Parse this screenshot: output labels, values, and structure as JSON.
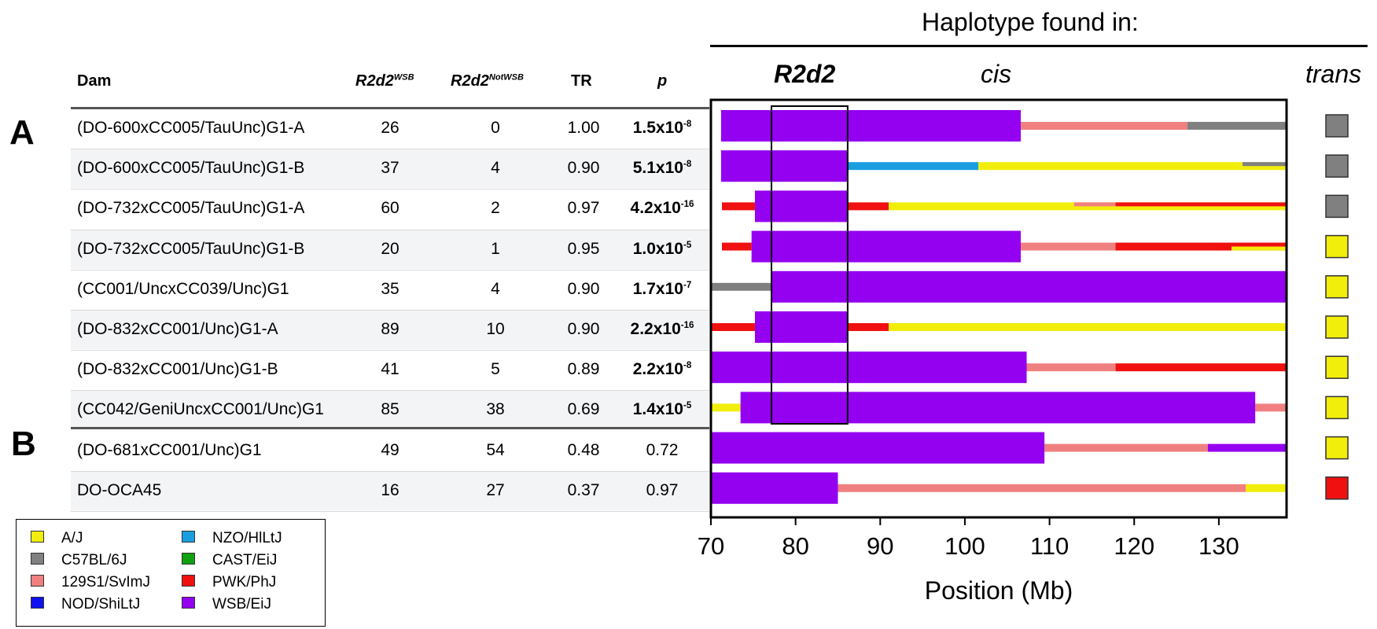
{
  "header": {
    "haplotype_title": "Haplotype found in:",
    "col_dam": "Dam",
    "col_wsb_main": "R2d2",
    "col_wsb_sup": "WSB",
    "col_notwsb_main": "R2d2",
    "col_notwsb_sup": "NotWSB",
    "col_tr": "TR",
    "col_p": "p",
    "r2d2_label": "R2d2",
    "cis_label": "cis",
    "trans_label": "trans"
  },
  "panels": {
    "a": "A",
    "b": "B"
  },
  "rows": [
    {
      "dam": "(DO-600xCC005/TauUnc)G1-A",
      "wsb": "26",
      "notwsb": "0",
      "tr": "1.00",
      "p_base": "1.5x10",
      "p_exp": "-8",
      "p_bold": true
    },
    {
      "dam": "(DO-600xCC005/TauUnc)G1-B",
      "wsb": "37",
      "notwsb": "4",
      "tr": "0.90",
      "p_base": "5.1x10",
      "p_exp": "-8",
      "p_bold": true
    },
    {
      "dam": "(DO-732xCC005/TauUnc)G1-A",
      "wsb": "60",
      "notwsb": "2",
      "tr": "0.97",
      "p_base": "4.2x10",
      "p_exp": "-16",
      "p_bold": true
    },
    {
      "dam": "(DO-732xCC005/TauUnc)G1-B",
      "wsb": "20",
      "notwsb": "1",
      "tr": "0.95",
      "p_base": "1.0x10",
      "p_exp": "-5",
      "p_bold": true
    },
    {
      "dam": "(CC001/UncxCC039/Unc)G1",
      "wsb": "35",
      "notwsb": "4",
      "tr": "0.90",
      "p_base": "1.7x10",
      "p_exp": "-7",
      "p_bold": true
    },
    {
      "dam": "(DO-832xCC001/Unc)G1-A",
      "wsb": "89",
      "notwsb": "10",
      "tr": "0.90",
      "p_base": "2.2x10",
      "p_exp": "-16",
      "p_bold": true
    },
    {
      "dam": "(DO-832xCC001/Unc)G1-B",
      "wsb": "41",
      "notwsb": "5",
      "tr": "0.89",
      "p_base": "2.2x10",
      "p_exp": "-8",
      "p_bold": true
    },
    {
      "dam": "(CC042/GeniUncxCC001/Unc)G1",
      "wsb": "85",
      "notwsb": "38",
      "tr": "0.69",
      "p_base": "1.4x10",
      "p_exp": "-5",
      "p_bold": true
    },
    {
      "dam": "(DO-681xCC001/Unc)G1",
      "wsb": "49",
      "notwsb": "54",
      "tr": "0.48",
      "p_base": "0.72",
      "p_exp": "",
      "p_bold": false
    },
    {
      "dam": "DO-OCA45",
      "wsb": "16",
      "notwsb": "27",
      "tr": "0.37",
      "p_base": "0.97",
      "p_exp": "",
      "p_bold": false
    }
  ],
  "legend": [
    {
      "label": "A/J",
      "color": "#f2ee0b"
    },
    {
      "label": "C57BL/6J",
      "color": "#808080"
    },
    {
      "label": "129S1/SvImJ",
      "color": "#f08080"
    },
    {
      "label": "NOD/ShiLtJ",
      "color": "#1010f0"
    },
    {
      "label": "NZO/HlLtJ",
      "color": "#1a9ee0"
    },
    {
      "label": "CAST/EiJ",
      "color": "#10a010"
    },
    {
      "label": "PWK/PhJ",
      "color": "#f01010"
    },
    {
      "label": "WSB/EiJ",
      "color": "#9400f0"
    }
  ],
  "chart_data": {
    "type": "haplotype-bars",
    "xlabel": "Position (Mb)",
    "xlim": [
      70,
      138
    ],
    "ticks": [
      70,
      80,
      90,
      100,
      110,
      120,
      130
    ],
    "r2d2_region": [
      77.2,
      86.2
    ],
    "strain_colors": {
      "A/J": "#f2ee0b",
      "C57BL/6J": "#808080",
      "129S1/SvImJ": "#f08080",
      "NOD/ShiLtJ": "#1010f0",
      "NZO/HlLtJ": "#1a9ee0",
      "CAST/EiJ": "#10a010",
      "PWK/PhJ": "#f01010",
      "WSB/EiJ": "#9400f0"
    },
    "rows": [
      {
        "cis_thick": [
          [
            71.2,
            106.6,
            "WSB/EiJ"
          ]
        ],
        "cis_thin": [
          [
            106.6,
            126.3,
            "129S1/SvImJ",
            "full"
          ],
          [
            126.3,
            138,
            "C57BL/6J",
            "full"
          ]
        ],
        "trans": "C57BL/6J"
      },
      {
        "cis_thick": [
          [
            71.2,
            86.2,
            "WSB/EiJ"
          ]
        ],
        "cis_thin": [
          [
            86.2,
            101.6,
            "NZO/HlLtJ",
            "full"
          ],
          [
            101.6,
            138,
            "A/J",
            "full"
          ],
          [
            132.8,
            138,
            "C57BL/6J",
            "top"
          ]
        ],
        "trans": "C57BL/6J"
      },
      {
        "cis_thick": [
          [
            75.2,
            86.2,
            "WSB/EiJ"
          ]
        ],
        "cis_thin": [
          [
            71.3,
            75.2,
            "PWK/PhJ",
            "full"
          ],
          [
            86.2,
            91.0,
            "PWK/PhJ",
            "full"
          ],
          [
            91.0,
            138,
            "A/J",
            "full"
          ],
          [
            112.9,
            117.8,
            "129S1/SvImJ",
            "top"
          ],
          [
            117.8,
            138,
            "PWK/PhJ",
            "top"
          ]
        ],
        "trans": "C57BL/6J"
      },
      {
        "cis_thick": [
          [
            74.8,
            106.6,
            "WSB/EiJ"
          ]
        ],
        "cis_thin": [
          [
            71.3,
            74.8,
            "PWK/PhJ",
            "full"
          ],
          [
            106.6,
            117.8,
            "129S1/SvImJ",
            "full"
          ],
          [
            117.8,
            138,
            "PWK/PhJ",
            "full"
          ],
          [
            131.5,
            138,
            "A/J",
            "bottom"
          ]
        ],
        "trans": "A/J"
      },
      {
        "cis_thick": [
          [
            77.2,
            138,
            "WSB/EiJ"
          ]
        ],
        "cis_thin": [
          [
            70.0,
            77.2,
            "C57BL/6J",
            "full"
          ]
        ],
        "trans": "A/J"
      },
      {
        "cis_thick": [
          [
            75.2,
            86.2,
            "WSB/EiJ"
          ]
        ],
        "cis_thin": [
          [
            70.0,
            75.2,
            "PWK/PhJ",
            "full"
          ],
          [
            86.2,
            91.0,
            "PWK/PhJ",
            "full"
          ],
          [
            91.0,
            138,
            "A/J",
            "full"
          ]
        ],
        "trans": "A/J"
      },
      {
        "cis_thick": [
          [
            70.0,
            107.3,
            "WSB/EiJ"
          ]
        ],
        "cis_thin": [
          [
            107.3,
            117.8,
            "129S1/SvImJ",
            "full"
          ],
          [
            117.8,
            138,
            "PWK/PhJ",
            "full"
          ]
        ],
        "trans": "A/J"
      },
      {
        "cis_thick": [
          [
            73.5,
            134.3,
            "WSB/EiJ"
          ]
        ],
        "cis_thin": [
          [
            70.0,
            73.5,
            "A/J",
            "full"
          ],
          [
            134.3,
            138,
            "129S1/SvImJ",
            "full"
          ]
        ],
        "trans": "A/J"
      },
      {
        "cis_thick": [
          [
            70.0,
            109.4,
            "WSB/EiJ"
          ]
        ],
        "cis_thin": [
          [
            109.4,
            128.7,
            "129S1/SvImJ",
            "full"
          ],
          [
            128.7,
            138,
            "WSB/EiJ",
            "full"
          ]
        ],
        "trans": "A/J"
      },
      {
        "cis_thick": [
          [
            70.0,
            85.0,
            "WSB/EiJ"
          ]
        ],
        "cis_thin": [
          [
            85.0,
            133.2,
            "129S1/SvImJ",
            "full"
          ],
          [
            133.2,
            138,
            "A/J",
            "full"
          ]
        ],
        "trans": "PWK/PhJ"
      }
    ]
  }
}
